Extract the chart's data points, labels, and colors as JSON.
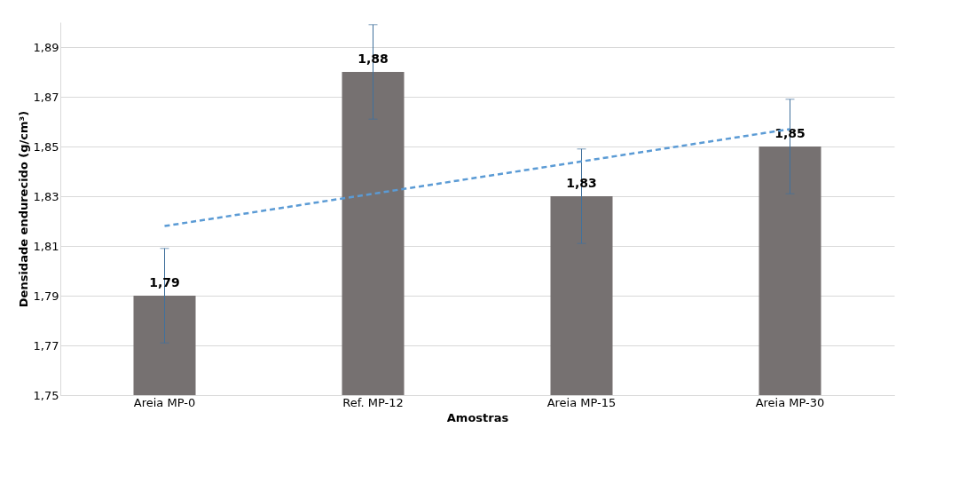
{
  "chart_data": {
    "type": "bar",
    "xlabel": "Amostras",
    "ylabel": "Densidade endurecido (g/cm³)",
    "categories": [
      "Areia MP-0",
      "Ref. MP-12",
      "Areia MP-15",
      "Areia MP-30"
    ],
    "series": [
      {
        "color": "#767171",
        "values": [
          1.79,
          1.88,
          1.83,
          1.85
        ],
        "errors": [
          0.019,
          0.019,
          0.019,
          0.019
        ],
        "value_labels": [
          "1,79",
          "1,88",
          "1,83",
          "1,85"
        ]
      },
      {
        "type": "line",
        "color": "#5b9bd5",
        "line_style": "dashed",
        "values": [
          1.818,
          1.831,
          1.844,
          1.857
        ]
      }
    ],
    "ylim": [
      1.75,
      1.9
    ],
    "yticks": [
      {
        "value": 1.75,
        "label": "1,75"
      },
      {
        "value": 1.77,
        "label": "1,77"
      },
      {
        "value": 1.79,
        "label": "1,79"
      },
      {
        "value": 1.81,
        "label": "1,81"
      },
      {
        "value": 1.83,
        "label": "1,83"
      },
      {
        "value": 1.85,
        "label": "1,85"
      },
      {
        "value": 1.87,
        "label": "1,87"
      },
      {
        "value": 1.89,
        "label": "1,89"
      }
    ],
    "grid": "y"
  }
}
